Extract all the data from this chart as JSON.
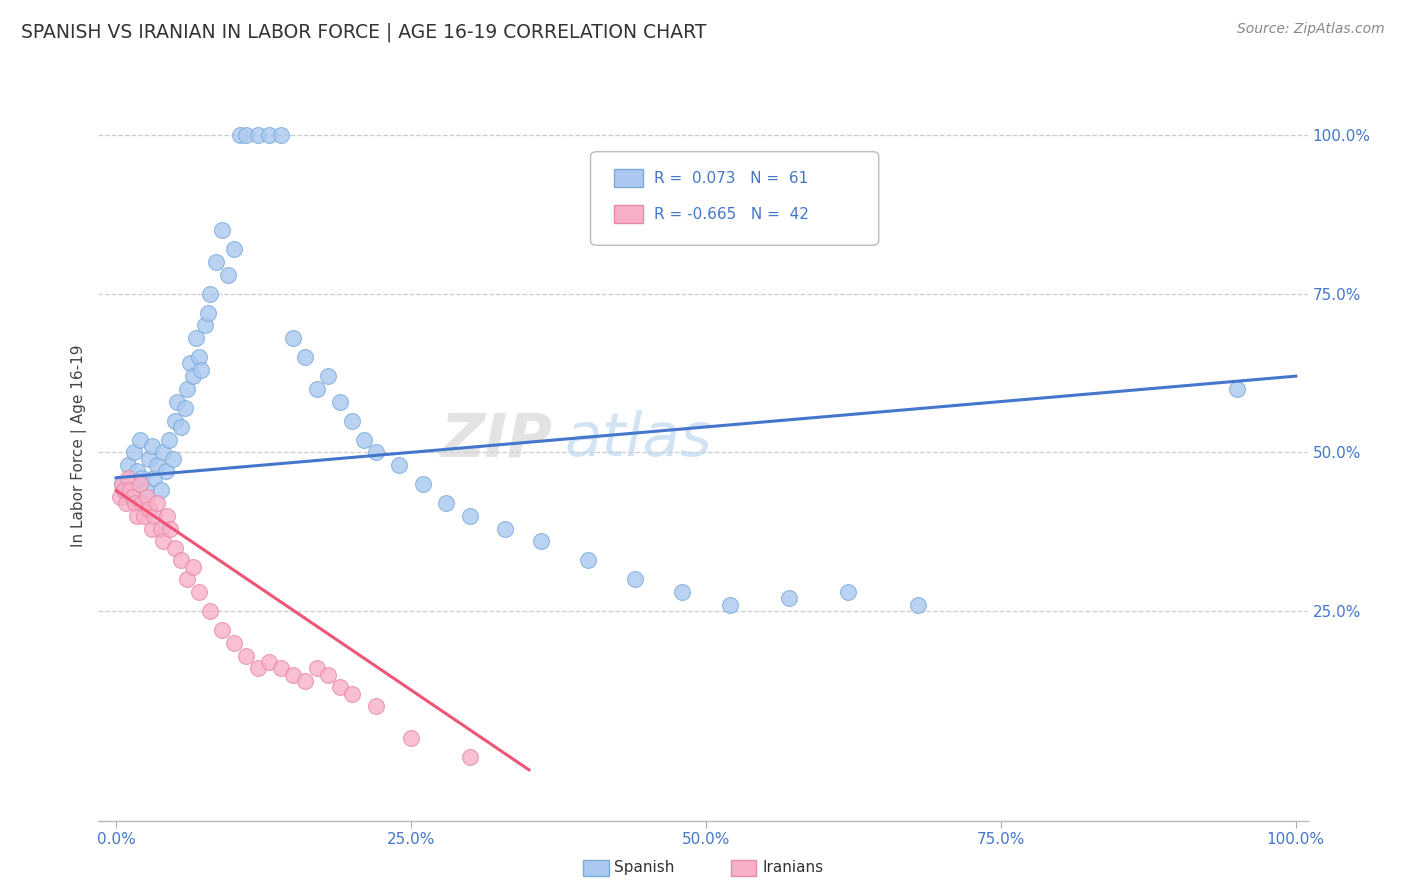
{
  "title": "SPANISH VS IRANIAN IN LABOR FORCE | AGE 16-19 CORRELATION CHART",
  "source": "Source: ZipAtlas.com",
  "ylabel": "In Labor Force | Age 16-19",
  "watermark_zip": "ZIP",
  "watermark_atlas": "atlas",
  "spanish_color": "#aac8f0",
  "spanish_edge": "#7aaad8",
  "iranian_color": "#f8b0c8",
  "iranian_edge": "#e888aa",
  "spanish_line_color": "#4477cc",
  "iranian_line_color": "#ee5577",
  "legend_R_spanish": "0.073",
  "legend_N_spanish": "61",
  "legend_R_iranian": "-0.665",
  "legend_N_iranian": "42",
  "spanish_x": [
    0.5,
    1.0,
    1.2,
    1.5,
    1.8,
    2.0,
    2.2,
    2.5,
    2.8,
    3.0,
    3.2,
    3.5,
    3.8,
    4.0,
    4.2,
    4.5,
    4.8,
    5.0,
    5.2,
    5.5,
    5.8,
    6.0,
    6.3,
    6.5,
    6.8,
    7.0,
    7.2,
    7.5,
    7.8,
    8.0,
    8.5,
    9.0,
    9.5,
    10.0,
    10.5,
    11.0,
    12.0,
    13.0,
    14.0,
    15.0,
    16.0,
    17.0,
    18.0,
    19.0,
    20.0,
    21.0,
    22.0,
    24.0,
    26.0,
    28.0,
    30.0,
    33.0,
    36.0,
    40.0,
    44.0,
    48.0,
    52.0,
    57.0,
    62.0,
    68.0,
    95.0
  ],
  "spanish_y": [
    45.0,
    48.0,
    43.0,
    50.0,
    47.0,
    52.0,
    46.0,
    44.0,
    49.0,
    51.0,
    46.0,
    48.0,
    44.0,
    50.0,
    47.0,
    52.0,
    49.0,
    55.0,
    58.0,
    54.0,
    57.0,
    60.0,
    64.0,
    62.0,
    68.0,
    65.0,
    63.0,
    70.0,
    72.0,
    75.0,
    80.0,
    85.0,
    78.0,
    82.0,
    100.0,
    100.0,
    100.0,
    100.0,
    100.0,
    68.0,
    65.0,
    60.0,
    62.0,
    58.0,
    55.0,
    52.0,
    50.0,
    48.0,
    45.0,
    42.0,
    40.0,
    38.0,
    36.0,
    33.0,
    30.0,
    28.0,
    26.0,
    27.0,
    28.0,
    26.0,
    60.0
  ],
  "iranian_x": [
    0.3,
    0.5,
    0.7,
    0.8,
    1.0,
    1.2,
    1.4,
    1.6,
    1.8,
    2.0,
    2.2,
    2.4,
    2.6,
    2.8,
    3.0,
    3.2,
    3.5,
    3.8,
    4.0,
    4.3,
    4.6,
    5.0,
    5.5,
    6.0,
    6.5,
    7.0,
    8.0,
    9.0,
    10.0,
    11.0,
    12.0,
    13.0,
    14.0,
    15.0,
    16.0,
    17.0,
    18.0,
    19.0,
    20.0,
    22.0,
    25.0,
    30.0
  ],
  "iranian_y": [
    43.0,
    45.0,
    44.0,
    42.0,
    46.0,
    44.0,
    43.0,
    42.0,
    40.0,
    45.0,
    42.0,
    40.0,
    43.0,
    41.0,
    38.0,
    40.0,
    42.0,
    38.0,
    36.0,
    40.0,
    38.0,
    35.0,
    33.0,
    30.0,
    32.0,
    28.0,
    25.0,
    22.0,
    20.0,
    18.0,
    16.0,
    17.0,
    16.0,
    15.0,
    14.0,
    16.0,
    15.0,
    13.0,
    12.0,
    10.0,
    5.0,
    2.0
  ]
}
